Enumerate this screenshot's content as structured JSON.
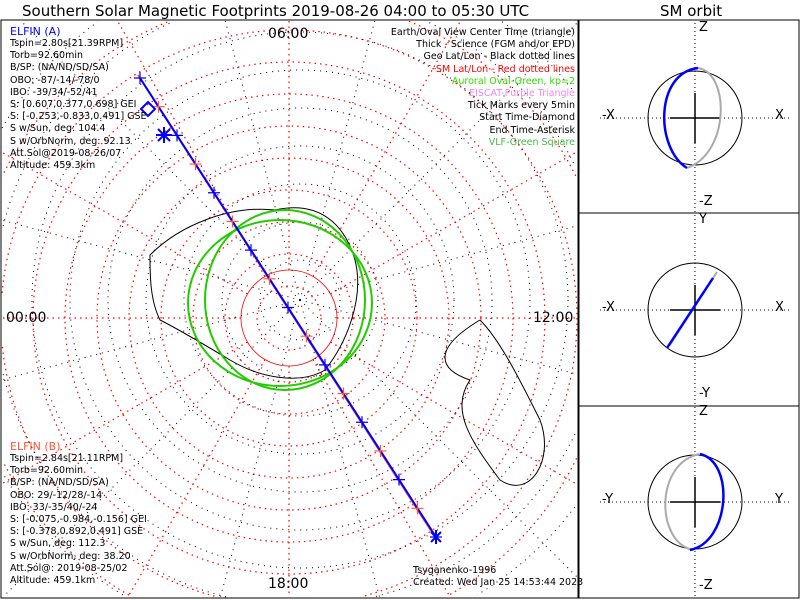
{
  "title": "Southern Solar Magnetic Footprints 2019-08-26 04:00 to 05:30 UTC",
  "orbit_title": "SM orbit",
  "map_labels": {
    "top": "06:00",
    "bottom": "18:00",
    "left": "00:00",
    "right": "12:00"
  },
  "elfin_a": {
    "name": "ELFIN (A)",
    "lines": [
      "Tspin=2.80s[21.39RPM]",
      "Torb=92.60min",
      "B/SP: (NA/ND/SD/SA)",
      "OBO: -87/-14/-78/0",
      "IBO: -39/34/-52/41",
      "S: [0.607,0.377,0.698] GEI",
      "S: [-0.253,-0.833,0.491] GSE",
      "S w/Sun, deg: 104.4",
      "S w/OrbNorm, deg: 92.13",
      "Att.Sol@2019-08-26/07",
      "Altitude: 459.3km"
    ]
  },
  "elfin_b": {
    "name": "ELFIN (B)",
    "lines": [
      "Tspin=2.84s[21.11RPM]",
      "Torb=92.60min",
      "B/SP: (NA/ND/SD/SA)",
      "OBO: 29/-12/28/-14",
      "IBO: 33/-35/40/-24",
      "S: [-0.075,-0.984,-0.156] GEI",
      "S: [-0.378,0.892,0.491] GSE",
      "S w/Sun, deg: 112.3",
      "S w/OrbNorm, deg: 38.20",
      "Att.Sol@: 2019-08-25/02",
      "Altitude: 459.1km"
    ]
  },
  "legend": [
    {
      "text": "Earth/Oval View Center Time (triangle)",
      "color": "#000000"
    },
    {
      "text": "Thick - Science (FGM and/or EPD)",
      "color": "#000000"
    },
    {
      "text": "Geo Lat/Lon - Black dotted lines",
      "color": "#000000"
    },
    {
      "text": "SM Lat/Lon - Red dotted lines",
      "color": "#ff0000"
    },
    {
      "text": "Auroral Oval-Green, kp=2",
      "color": "#33dd00"
    },
    {
      "text": "EISCAT-Purple Triangle",
      "color": "#ee88ee"
    },
    {
      "text": "Tick Marks every 5min",
      "color": "#000000"
    },
    {
      "text": "Start Time-Diamond",
      "color": "#000000"
    },
    {
      "text": "End Time-Asterisk",
      "color": "#000000"
    },
    {
      "text": "VLF-Green Square",
      "color": "#44bb44"
    }
  ],
  "footer": {
    "model": "Tsyganenko-1996",
    "created": "Created: Wed Jan 25 14:53:44 2023"
  },
  "orbit_panels": [
    {
      "top": "Z",
      "bottom": "-Z",
      "left": "-X",
      "right": "X"
    },
    {
      "top": "Y",
      "bottom": "-Y",
      "left": "-X",
      "right": "X"
    },
    {
      "top": "Z",
      "bottom": "-Z",
      "left": "-Y",
      "right": "Y"
    }
  ],
  "colors": {
    "elfin_a": "#0000ff",
    "elfin_b": "#ff5533",
    "oval": "#22cc00",
    "sm_grid": "#ff0000",
    "geo_grid": "#000000"
  },
  "chart_data": {
    "type": "map",
    "title": "Southern Solar Magnetic Footprints 2019-08-26 04:00 to 05:30 UTC",
    "projection": "polar, southern hemisphere, SM coordinates",
    "mlt_labels": [
      "00:00",
      "06:00",
      "12:00",
      "18:00"
    ],
    "auroral_oval_kp": 2,
    "tick_interval_min": 5
  }
}
